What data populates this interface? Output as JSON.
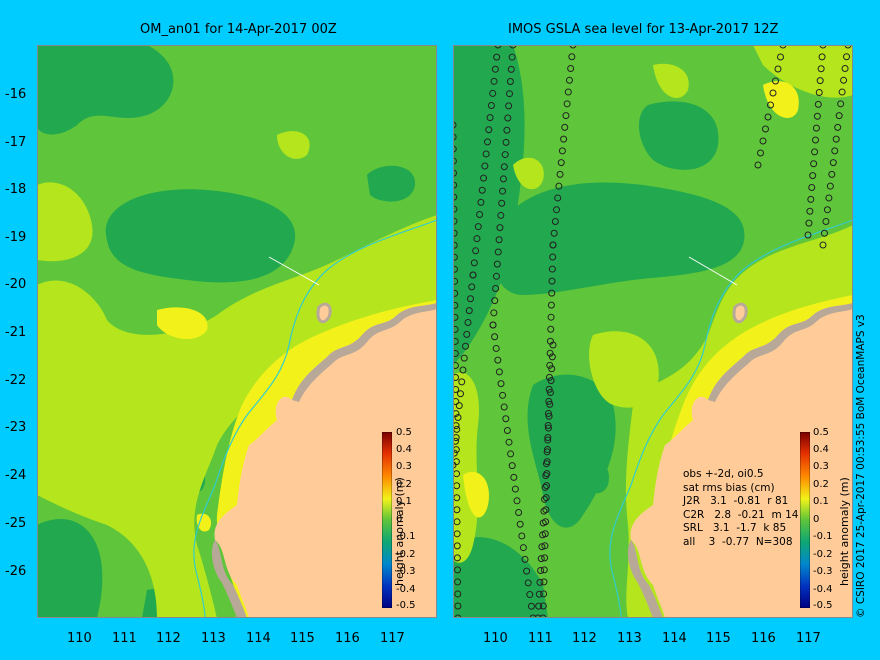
{
  "panels": [
    {
      "title": "OM_an01 for 14-Apr-2017 00Z"
    },
    {
      "title": "IMOS GSLA sea level  for 13-Apr-2017 12Z"
    }
  ],
  "axes": {
    "y_labels": [
      "-16",
      "-17",
      "-18",
      "-19",
      "-20",
      "-21",
      "-22",
      "-23",
      "-24",
      "-25",
      "-26"
    ],
    "x_labels": [
      "110",
      "111",
      "112",
      "113",
      "114",
      "115",
      "116",
      "117"
    ]
  },
  "colorbar": {
    "title": "height anomaly (m)",
    "labels": [
      "0.5",
      "0.4",
      "0.3",
      "0.2",
      "0.1",
      "0",
      "-0.1",
      "-0.2",
      "-0.3",
      "-0.4",
      "-0.5"
    ]
  },
  "stats": {
    "line1": "obs +-2d, oi0.5",
    "line2": "sat rms bias (cm)",
    "rows": [
      "J2R   3.1  -0.81  r 81",
      "C2R   2.8  -0.21  m 14",
      "SRL   3.1  -1.7  k 85",
      "all    3  -0.77  N=308"
    ]
  },
  "credit": "© CSIRO 2017   25-Apr-2017 00:53:55 BoM OceanMAPS v3",
  "colors": {
    "background": "#00ccff",
    "land": "#ffcc99",
    "coast": "#b8a898",
    "deep_green": "#22a84f",
    "green": "#5fc53a",
    "yellow_green": "#b5e61d",
    "yellow": "#f2f21a"
  }
}
